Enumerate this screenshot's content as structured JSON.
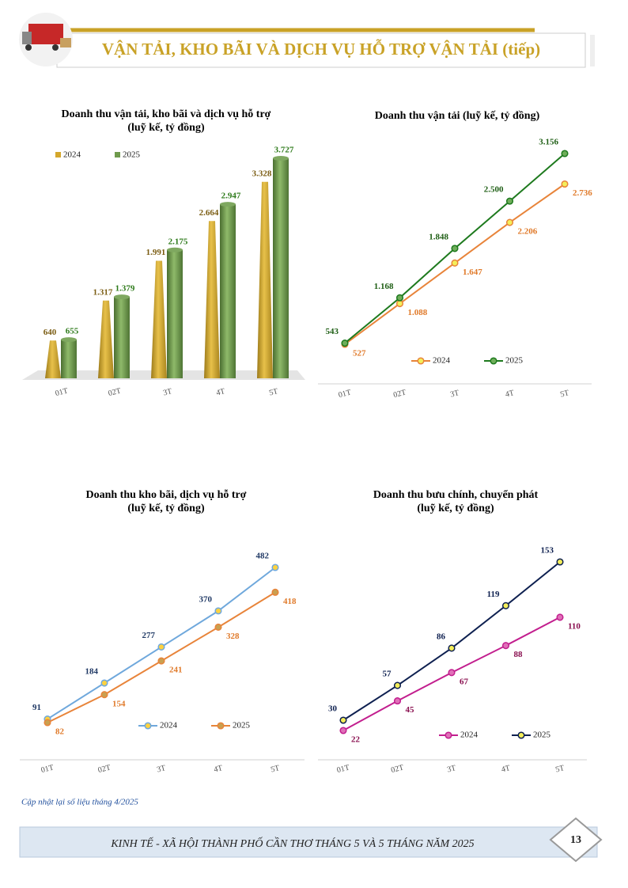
{
  "header": {
    "title": "VẬN TẢI, KHO BÃI VÀ DỊCH VỤ HỖ TRỢ VẬN TẢI (tiếp)"
  },
  "chart_data": [
    {
      "type": "bar",
      "title": [
        "Doanh thu vận tải, kho bãi và dịch vụ hỗ trợ",
        "(luỹ kế, tỷ đồng)"
      ],
      "categories": [
        "01T",
        "02T",
        "3T",
        "4T",
        "5T"
      ],
      "series": [
        {
          "name": "2024",
          "color": "#d4a72c",
          "label_color": "#7a5c12",
          "values": [
            640,
            1317,
            1991,
            2664,
            3328
          ],
          "value_labels": [
            "640",
            "1.317",
            "1.991",
            "2.664",
            "3.328"
          ]
        },
        {
          "name": "2025",
          "color": "#6f9a4c",
          "label_color": "#2d7a1a",
          "values": [
            655,
            1379,
            2175,
            2947,
            3727
          ],
          "value_labels": [
            "655",
            "1.379",
            "2.175",
            "2.947",
            "3.727"
          ]
        }
      ]
    },
    {
      "type": "line",
      "title": [
        "Doanh thu vận tải (luỹ kế, tỷ đồng)"
      ],
      "categories": [
        "01T",
        "02T",
        "3T",
        "4T",
        "5T"
      ],
      "series": [
        {
          "name": "2024",
          "color": "#e8843a",
          "marker_color": "#f4ee5a",
          "label_color": "#e07a2a",
          "values": [
            527,
            1088,
            1647,
            2206,
            2736
          ],
          "value_labels": [
            "527",
            "1.088",
            "1.647",
            "2.206",
            "2.736"
          ]
        },
        {
          "name": "2025",
          "color": "#1e7a1e",
          "marker_color": "#6fae5a",
          "label_color": "#1e5e14",
          "values": [
            543,
            1168,
            1848,
            2500,
            3156
          ],
          "value_labels": [
            "543",
            "1.168",
            "1.848",
            "2.500",
            "3.156"
          ]
        }
      ]
    },
    {
      "type": "line",
      "title": [
        "Doanh thu kho bãi, dịch vụ hỗ trợ",
        "(luỹ kế, tỷ đồng)"
      ],
      "categories": [
        "01T",
        "02T",
        "3T",
        "4T",
        "5T"
      ],
      "series": [
        {
          "name": "2024",
          "color": "#6fa8dc",
          "marker_color": "#ffd23f",
          "label_color": "#1f3864",
          "values": [
            91,
            184,
            277,
            370,
            482
          ]
        },
        {
          "name": "2025",
          "color": "#e8843a",
          "marker_color": "#c9a050",
          "label_color": "#e07a2a",
          "values": [
            82,
            154,
            241,
            328,
            418
          ]
        }
      ]
    },
    {
      "type": "line",
      "title": [
        "Doanh thu bưu chính, chuyển phát",
        "(luỹ kế, tỷ đồng)"
      ],
      "categories": [
        "01T",
        "02T",
        "3T",
        "4T",
        "5T"
      ],
      "series": [
        {
          "name": "2024",
          "color": "#c21e8e",
          "marker_color": "#e070b8",
          "label_color": "#8a1050",
          "values": [
            22,
            45,
            67,
            88,
            110
          ]
        },
        {
          "name": "2025",
          "color": "#0e2050",
          "marker_color": "#f4ee5a",
          "label_color": "#0e2050",
          "values": [
            30,
            57,
            86,
            119,
            153
          ]
        }
      ]
    }
  ],
  "footnote": "Cập nhật lại số liệu tháng 4/2025",
  "footer": {
    "text": "KINH TẾ - XÃ HỘI THÀNH PHỐ CẦN THƠ THÁNG 5 VÀ 5 THÁNG NĂM 2025",
    "page": "13"
  }
}
